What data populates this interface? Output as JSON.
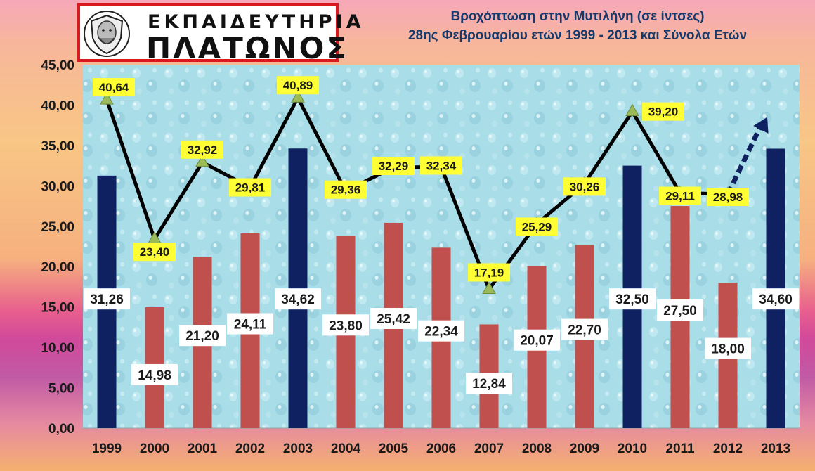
{
  "logo": {
    "line1": "ΕΚΠΑΙΔΕΥΤΗΡΙΑ",
    "line2": "ΠΛΑΤΩΝΟΣ"
  },
  "chart_data": {
    "type": "bar",
    "title": "Βροχόπτωση στην Μυτιλήνη (σε ίντσες)",
    "subtitle": "28ης Φεβρουαρίου ετών 1999 - 2013 και Σύνολα Ετών",
    "categories": [
      "1999",
      "2000",
      "2001",
      "2002",
      "2003",
      "2004",
      "2005",
      "2006",
      "2007",
      "2008",
      "2009",
      "2010",
      "2011",
      "2012",
      "2013"
    ],
    "y_ticks": [
      "0,00",
      "5,00",
      "10,00",
      "15,00",
      "20,00",
      "25,00",
      "30,00",
      "35,00",
      "40,00",
      "45,00"
    ],
    "ylim": [
      0,
      45
    ],
    "grid": false,
    "series": [
      {
        "kind": "bar",
        "values": [
          31.26,
          14.98,
          21.2,
          24.11,
          34.62,
          23.8,
          25.42,
          22.34,
          12.84,
          20.07,
          22.7,
          32.5,
          27.5,
          18.0,
          34.6
        ],
        "labels": [
          "31,26",
          "14,98",
          "21,20",
          "24,11",
          "34,62",
          "23,80",
          "25,42",
          "22,34",
          "12,84",
          "20,07",
          "22,70",
          "32,50",
          "27,50",
          "18,00",
          "34,60"
        ],
        "highlight": [
          true,
          false,
          false,
          false,
          true,
          false,
          false,
          false,
          false,
          false,
          false,
          true,
          false,
          false,
          true
        ]
      },
      {
        "kind": "line",
        "values": [
          40.64,
          23.4,
          32.92,
          29.81,
          40.89,
          29.36,
          32.29,
          32.34,
          17.19,
          25.29,
          30.26,
          39.2,
          29.11,
          28.98,
          null
        ],
        "labels": [
          "40,64",
          "23,40",
          "32,92",
          "29,81",
          "40,89",
          "29,36",
          "32,29",
          "32,34",
          "17,19",
          "25,29",
          "30,26",
          "39,20",
          "29,11",
          "28,98",
          ""
        ],
        "trend_arrow_to": 38.5
      }
    ],
    "colors": {
      "bar_highlight": "#0f2160",
      "bar_normal": "#c0504d",
      "line": "#000000",
      "marker": "#9bbb59",
      "line_label_bg": "#ffff33",
      "bar_label_bg": "#ffffff",
      "arrow": "#0f2160",
      "plot_bg": "#a9dde8"
    }
  }
}
